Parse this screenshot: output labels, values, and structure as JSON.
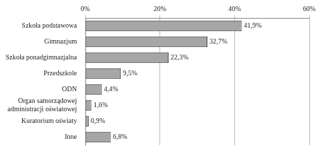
{
  "chart_data": {
    "type": "bar",
    "orientation": "horizontal",
    "categories": [
      "Szkoła podstawowa",
      "Gimnazjum",
      "Szkoła ponadgimnazjalna",
      "Przedszkole",
      "ODN",
      "Organ samorządowej administracji oświatowej",
      "Kuratorium oświaty",
      "Inne"
    ],
    "values": [
      41.9,
      32.7,
      22.3,
      9.5,
      4.4,
      1.6,
      0.9,
      6.8
    ],
    "value_labels": [
      "41,9%",
      "32,7%",
      "22,3%",
      "9,5%",
      "4,4%",
      "1,6%",
      "0,9%",
      "6,8%"
    ],
    "color": "#a6a6a6",
    "xlim": [
      0,
      60
    ],
    "xticks": [
      {
        "value": 0,
        "label": "0%"
      },
      {
        "value": 20,
        "label": "20%"
      },
      {
        "value": 40,
        "label": "40%"
      },
      {
        "value": 60,
        "label": "60%"
      }
    ],
    "grid": true,
    "data_labels": true
  }
}
